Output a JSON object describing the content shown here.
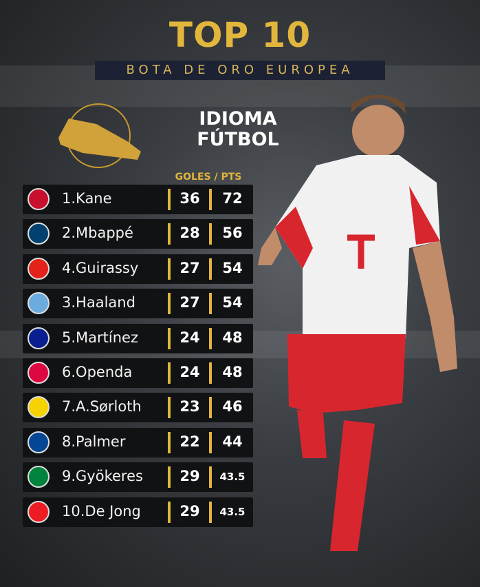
{
  "header": {
    "title": "TOP 10",
    "subtitle": "BOTA DE ORO EUROPEA",
    "brand": [
      "IDIOMA",
      "FÚTBOL"
    ]
  },
  "table": {
    "column_header": "GOLES / PTS",
    "rows": [
      {
        "name": "1.Kane",
        "goals": 36,
        "points": 72
      },
      {
        "name": "2.Mbappé",
        "goals": 28,
        "points": 56
      },
      {
        "name": "4.Guirassy",
        "goals": 27,
        "points": 54
      },
      {
        "name": "3.Haaland",
        "goals": 27,
        "points": 54
      },
      {
        "name": "5.Martínez",
        "goals": 24,
        "points": 48
      },
      {
        "name": "6.Openda",
        "goals": 24,
        "points": 48
      },
      {
        "name": "7.A.Sørloth",
        "goals": 23,
        "points": 46
      },
      {
        "name": "8.Palmer",
        "goals": 22,
        "points": 44
      },
      {
        "name": "9.Gyökeres",
        "goals": 29,
        "points": 43.5
      },
      {
        "name": "10.De Jong",
        "goals": 29,
        "points": 43.5
      }
    ]
  }
}
